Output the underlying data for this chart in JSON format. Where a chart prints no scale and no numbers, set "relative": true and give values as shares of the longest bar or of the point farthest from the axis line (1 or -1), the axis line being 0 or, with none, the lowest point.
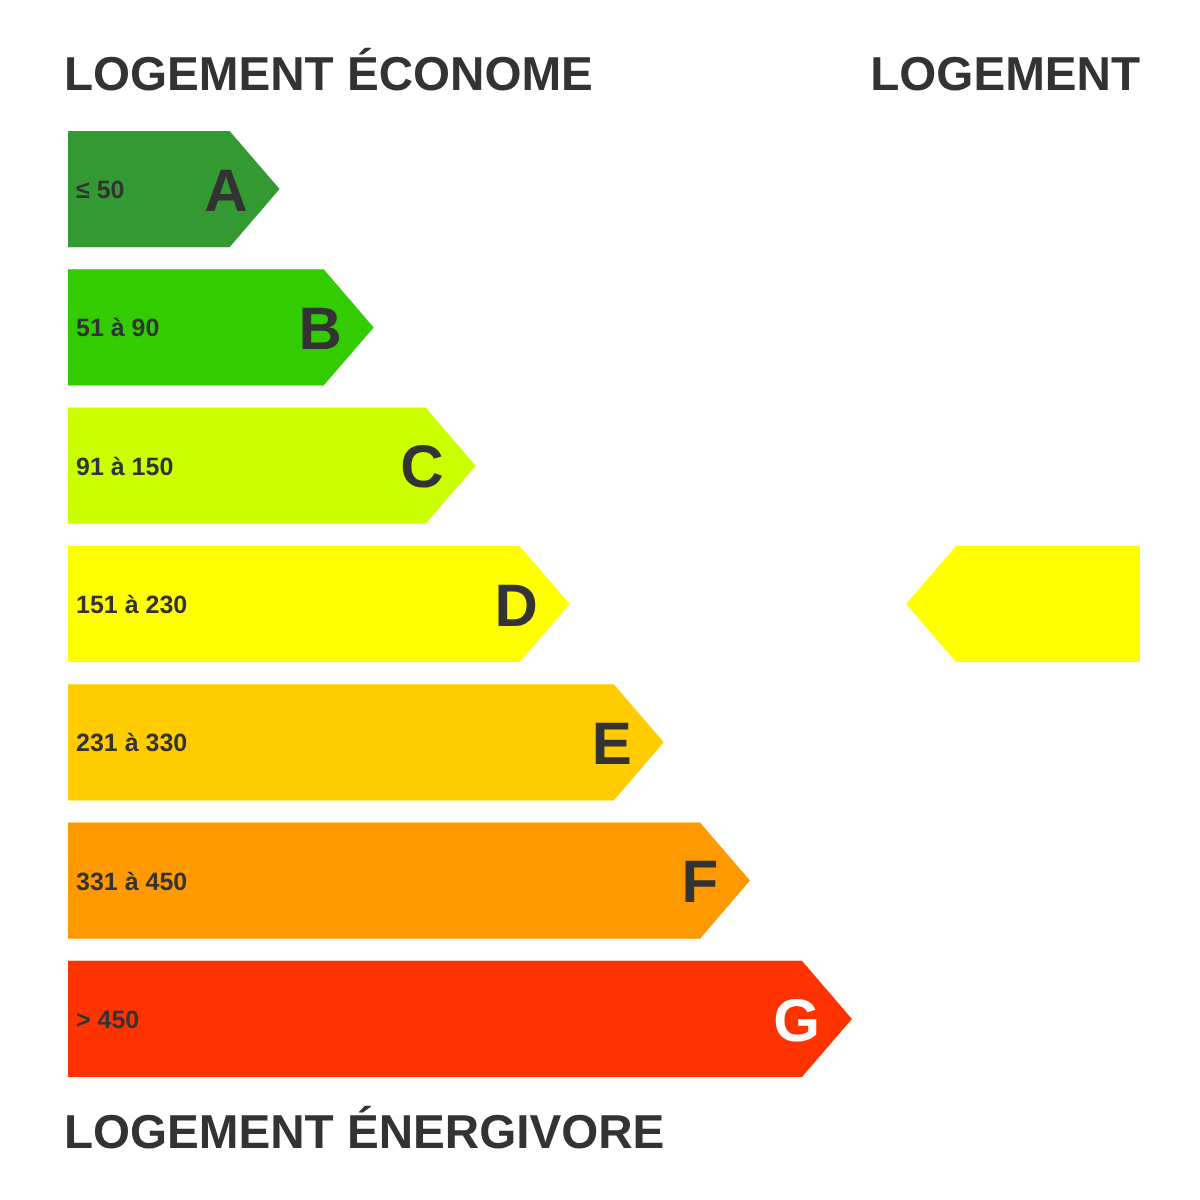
{
  "chart_data": [
    {
      "type": "bar",
      "orientation": "horizontal",
      "relative": true,
      "title": "LOGEMENT ÉCONOME",
      "categories": [
        "A",
        "B",
        "C",
        "D",
        "E",
        "F",
        "G"
      ],
      "values": [
        0.27,
        0.39,
        0.52,
        0.64,
        0.76,
        0.87,
        1
      ],
      "colors": [
        "#339933",
        "#33cc00",
        "#ccff00",
        "#ffff00",
        "#ffcc00",
        "#ff9900",
        "#ff3300"
      ],
      "annotations": [
        "LOGEMENT ÉNERGIVORE",
        "≤ 50",
        "51 à 90",
        "91 à 150",
        "151 à 230",
        "231 à 330",
        "331 à 450",
        "> 450"
      ]
    },
    {
      "type": "bar",
      "orientation": "horizontal",
      "relative": true,
      "title": "LOGEMENT",
      "categories": [
        null,
        null,
        null,
        null,
        null,
        null,
        null
      ],
      "values": [
        null,
        null,
        null,
        -1,
        null,
        null,
        null
      ],
      "color": "#ffff00"
    }
  ]
}
